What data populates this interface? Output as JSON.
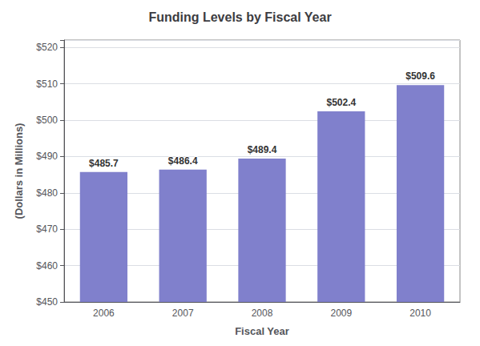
{
  "chart_data": {
    "type": "bar",
    "title": "Funding Levels by Fiscal Year",
    "xlabel": "Fiscal Year",
    "ylabel": "(Dollars in Millions)",
    "categories": [
      "2006",
      "2007",
      "2008",
      "2009",
      "2010"
    ],
    "values": [
      485.7,
      486.4,
      489.4,
      502.4,
      509.6
    ],
    "value_labels": [
      "$485.7",
      "$486.4",
      "$489.4",
      "$502.4",
      "$509.6"
    ],
    "data_labels": true,
    "color": "#8080cc",
    "ylim": [
      450,
      522
    ],
    "yticks": [
      {
        "value": 450,
        "label": "$450"
      },
      {
        "value": 460,
        "label": "$460"
      },
      {
        "value": 470,
        "label": "$470"
      },
      {
        "value": 480,
        "label": "$480"
      },
      {
        "value": 490,
        "label": "$490"
      },
      {
        "value": 500,
        "label": "$500"
      },
      {
        "value": 510,
        "label": "$510"
      },
      {
        "value": 520,
        "label": "$520"
      }
    ],
    "grid": true
  }
}
